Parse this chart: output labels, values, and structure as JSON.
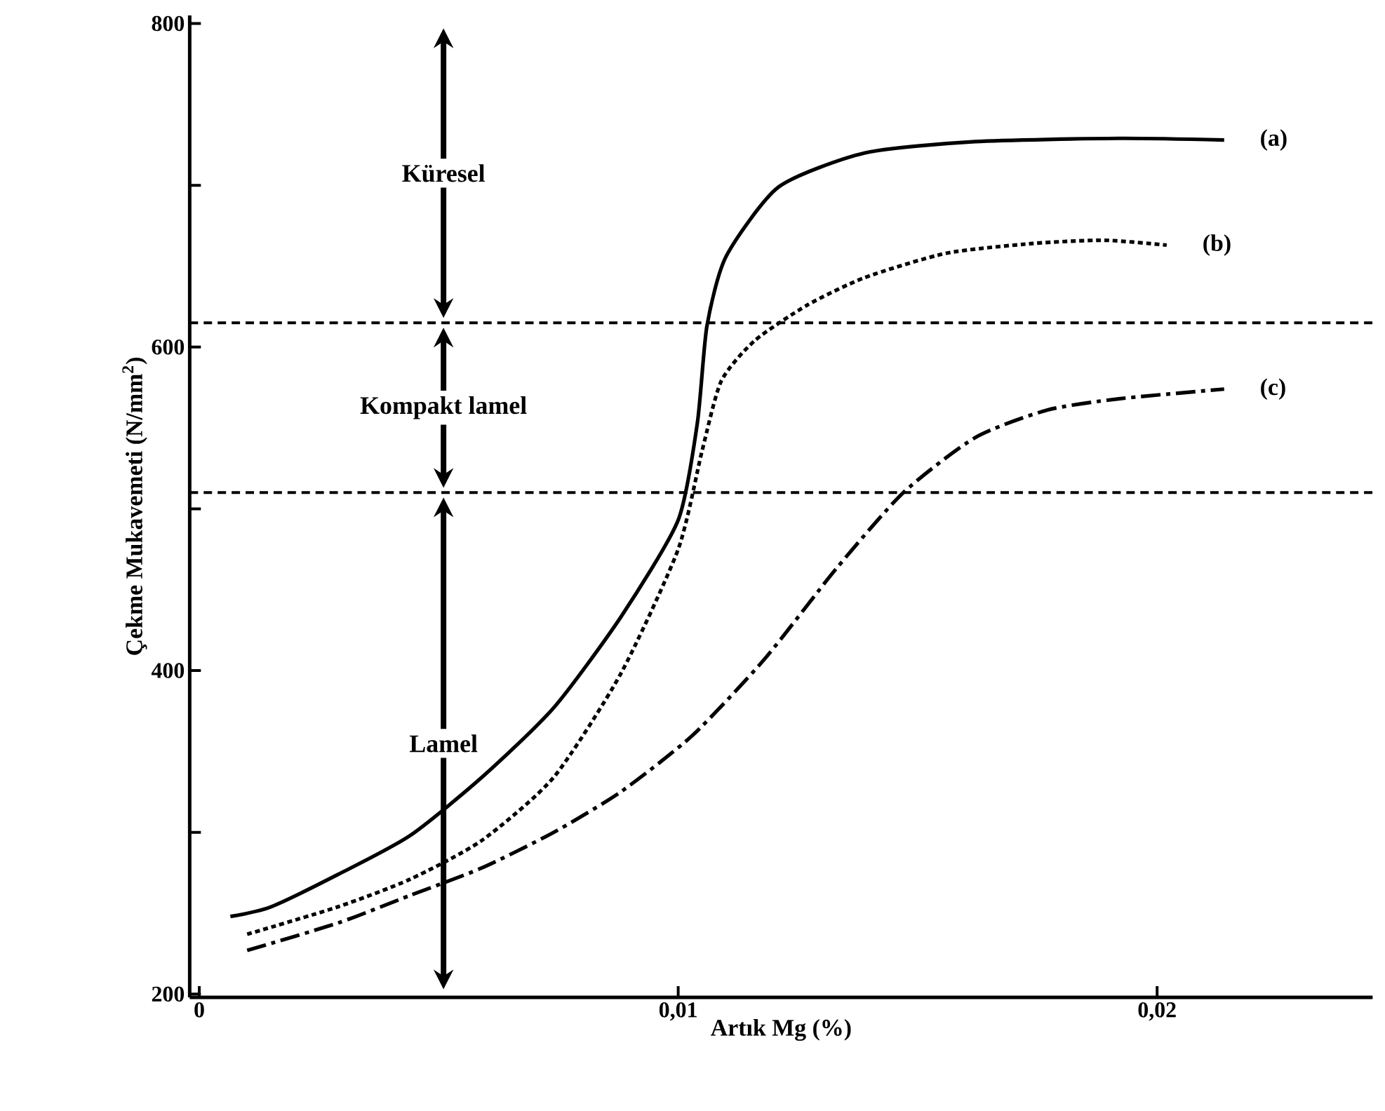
{
  "chart_data": {
    "type": "line",
    "xlabel": "Artık Mg (%)",
    "ylabel": "Çekme Mukavemeti (N/mm$^{2}$)",
    "xlim": [
      -0.0002,
      0.0245
    ],
    "ylim": [
      198,
      805
    ],
    "xticks": [
      0,
      {
        "value": 0.01,
        "label": "0,01"
      },
      {
        "value": 0.02,
        "label": "0,02"
      }
    ],
    "yticks": [
      200,
      {
        "value": 300,
        "label": null
      },
      400,
      {
        "value": 500,
        "label": null
      },
      600,
      {
        "value": 700,
        "label": null
      },
      800
    ],
    "series": [
      {
        "name": "(a)",
        "color": "#000000",
        "line_style": "solid",
        "x": [
          0.00065,
          0.0015,
          0.0029,
          0.0044,
          0.0059,
          0.0074,
          0.0088,
          0.01,
          0.0104,
          0.0106,
          0.011,
          0.0121,
          0.0139,
          0.0162,
          0.0192,
          0.0214
        ],
        "values": [
          248,
          254,
          274,
          298,
          334,
          377,
          433,
          493,
          553,
          613,
          656,
          699,
          720,
          727,
          729,
          728
        ]
      },
      {
        "name": "(b)",
        "color": "#000000",
        "line_style": "dotted",
        "x": [
          0.001,
          0.0029,
          0.0044,
          0.0059,
          0.0074,
          0.0088,
          0.01,
          0.0105,
          0.0109,
          0.0116,
          0.0127,
          0.0139,
          0.0156,
          0.0174,
          0.0189,
          0.0202
        ],
        "values": [
          237,
          254,
          271,
          295,
          334,
          398,
          475,
          536,
          579,
          604,
          626,
          643,
          658,
          664,
          666,
          663
        ]
      },
      {
        "name": "(c)",
        "color": "#000000",
        "line_style": "dashed",
        "x": [
          0.001,
          0.0029,
          0.0044,
          0.0059,
          0.0074,
          0.0088,
          0.0103,
          0.0118,
          0.0133,
          0.0147,
          0.0162,
          0.0177,
          0.0192,
          0.0214
        ],
        "values": [
          227,
          244,
          261,
          278,
          300,
          325,
          360,
          407,
          463,
          510,
          544,
          561,
          568,
          574
        ]
      }
    ],
    "ref_lines": [
      {
        "axis": "y",
        "value": 615,
        "line_style": "dashed"
      },
      {
        "axis": "y",
        "value": 510,
        "line_style": "dashed"
      }
    ],
    "annotations": [
      "Küresel",
      "Kompakt lamel",
      "Lamel"
    ],
    "grid": false
  }
}
